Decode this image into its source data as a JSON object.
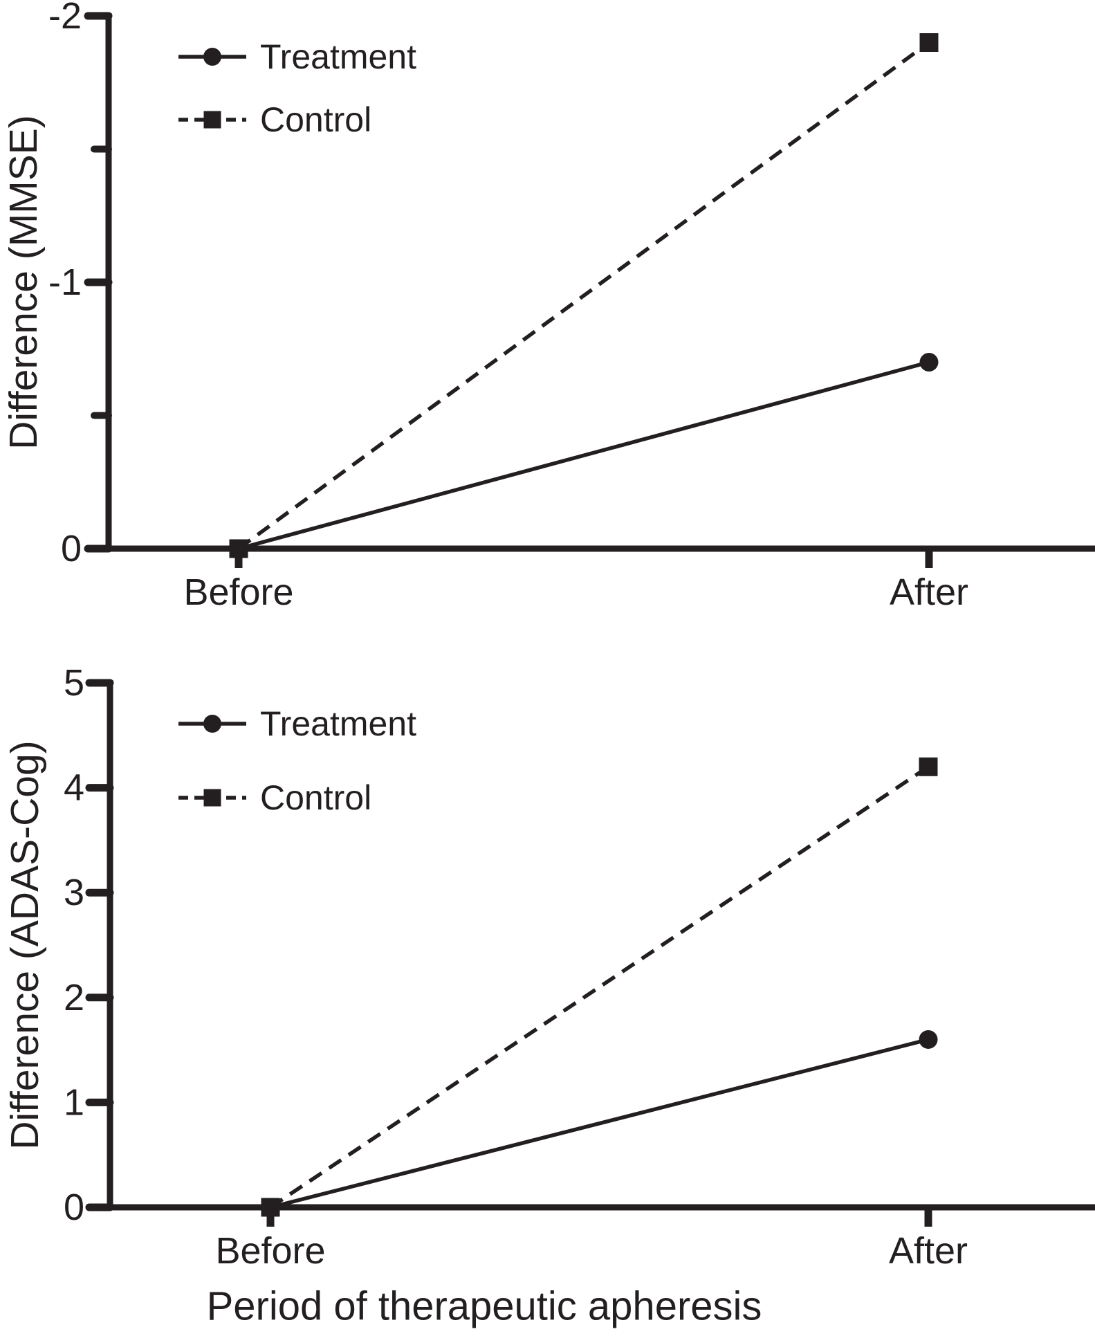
{
  "figure": {
    "ink_color": "#231f20",
    "background_color": "#ffffff"
  },
  "chart_data": [
    {
      "type": "line",
      "title": "",
      "categories": [
        "Before",
        "After"
      ],
      "series": [
        {
          "name": "Treatment",
          "values": [
            0,
            -0.7
          ],
          "line_style": "solid",
          "marker": "circle"
        },
        {
          "name": "Control",
          "values": [
            0,
            -1.9
          ],
          "line_style": "dashed",
          "marker": "square"
        }
      ],
      "xlabel": "",
      "ylabel": "Difference (MMSE)",
      "ylim": [
        0,
        -2
      ],
      "yticks": [
        0,
        -1,
        -2
      ],
      "ytick_labels": [
        "0",
        "-1",
        "-2"
      ],
      "yminorticks": [
        -0.5,
        -1.5
      ],
      "grid": false,
      "legend_position": "upper-left-inside",
      "legend_labels": [
        "Treatment",
        "Control"
      ]
    },
    {
      "type": "line",
      "title": "",
      "categories": [
        "Before",
        "After"
      ],
      "series": [
        {
          "name": "Treatment",
          "values": [
            0,
            1.6
          ],
          "line_style": "solid",
          "marker": "circle"
        },
        {
          "name": "Control",
          "values": [
            0,
            4.2
          ],
          "line_style": "dashed",
          "marker": "square"
        }
      ],
      "xlabel": "Period of therapeutic apheresis",
      "ylabel": "Difference (ADAS-Cog)",
      "ylim": [
        0,
        5
      ],
      "yticks": [
        0,
        1,
        2,
        3,
        4,
        5
      ],
      "ytick_labels": [
        "0",
        "1",
        "2",
        "3",
        "4",
        "5"
      ],
      "yminorticks": [],
      "grid": false,
      "legend_position": "upper-left-inside",
      "legend_labels": [
        "Treatment",
        "Control"
      ]
    }
  ]
}
